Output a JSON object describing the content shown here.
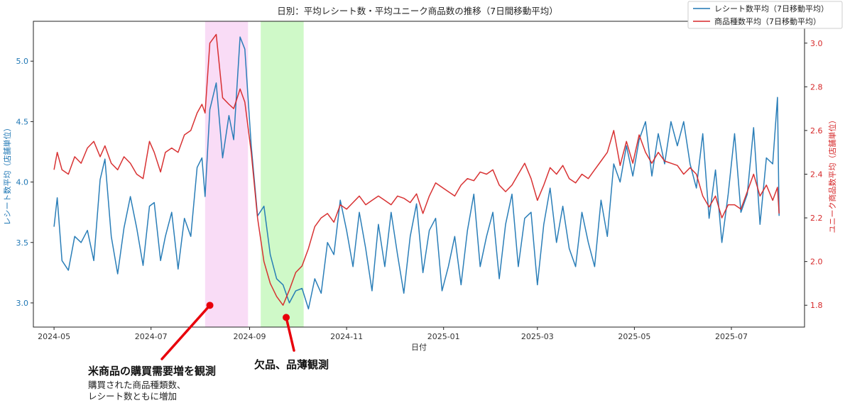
{
  "chart_data": {
    "type": "line",
    "title": "日別：平均レシート数・平均ユニーク商品数の推移（7日間移動平均）",
    "xlabel": "日付",
    "ylabel_left": "レシート数平均（店舗単位）",
    "ylabel_right": "ユニーク商品数平均（店舗単位）",
    "x_start": "2024-05-01",
    "x_end": "2025-07-31",
    "xlim": [
      "2024-04-18",
      "2025-08-16"
    ],
    "ylim_left": [
      2.8,
      5.33
    ],
    "ylim_right": [
      1.7,
      3.1
    ],
    "x_ticks": [
      "2024-05",
      "2024-07",
      "2024-09",
      "2024-11",
      "2025-01",
      "2025-03",
      "2025-05",
      "2025-07"
    ],
    "y_ticks_left": [
      "3.0",
      "3.5",
      "4.0",
      "4.5",
      "5.0"
    ],
    "y_ticks_right": [
      "1.8",
      "2.0",
      "2.2",
      "2.4",
      "2.6",
      "2.8",
      "3.0"
    ],
    "legend": [
      "レシート数平均（7日移動平均）",
      "商品種数平均（7日移動平均）"
    ],
    "legend_position": "top-right",
    "highlight_regions": [
      {
        "start": "2024-08-04",
        "end": "2024-08-31",
        "color": "#f9dcf6"
      },
      {
        "start": "2024-09-08",
        "end": "2024-10-05",
        "color": "#cff9c8"
      }
    ],
    "series": [
      {
        "name": "レシート数平均（7日移動平均）",
        "axis": "left",
        "color": "#1f77b4",
        "key_points": [
          [
            "2024-05-01",
            3.63
          ],
          [
            "2024-05-03",
            3.87
          ],
          [
            "2024-05-06",
            3.35
          ],
          [
            "2024-05-10",
            3.27
          ],
          [
            "2024-05-14",
            3.55
          ],
          [
            "2024-05-18",
            3.5
          ],
          [
            "2024-05-22",
            3.6
          ],
          [
            "2024-05-26",
            3.35
          ],
          [
            "2024-05-30",
            4.02
          ],
          [
            "2024-06-02",
            4.19
          ],
          [
            "2024-06-06",
            3.55
          ],
          [
            "2024-06-10",
            3.24
          ],
          [
            "2024-06-14",
            3.62
          ],
          [
            "2024-06-18",
            3.88
          ],
          [
            "2024-06-22",
            3.62
          ],
          [
            "2024-06-26",
            3.31
          ],
          [
            "2024-06-30",
            3.8
          ],
          [
            "2024-07-03",
            3.83
          ],
          [
            "2024-07-07",
            3.35
          ],
          [
            "2024-07-10",
            3.55
          ],
          [
            "2024-07-14",
            3.75
          ],
          [
            "2024-07-18",
            3.28
          ],
          [
            "2024-07-22",
            3.7
          ],
          [
            "2024-07-26",
            3.55
          ],
          [
            "2024-07-30",
            4.12
          ],
          [
            "2024-08-02",
            4.2
          ],
          [
            "2024-08-04",
            3.88
          ],
          [
            "2024-08-07",
            4.6
          ],
          [
            "2024-08-11",
            4.82
          ],
          [
            "2024-08-15",
            4.2
          ],
          [
            "2024-08-19",
            4.55
          ],
          [
            "2024-08-22",
            4.35
          ],
          [
            "2024-08-26",
            5.2
          ],
          [
            "2024-08-29",
            5.1
          ],
          [
            "2024-09-02",
            4.3
          ],
          [
            "2024-09-06",
            3.72
          ],
          [
            "2024-09-10",
            3.8
          ],
          [
            "2024-09-14",
            3.4
          ],
          [
            "2024-09-18",
            3.2
          ],
          [
            "2024-09-22",
            3.15
          ],
          [
            "2024-09-26",
            3.0
          ],
          [
            "2024-09-30",
            3.1
          ],
          [
            "2024-10-04",
            3.12
          ],
          [
            "2024-10-08",
            2.95
          ],
          [
            "2024-10-12",
            3.2
          ],
          [
            "2024-10-16",
            3.08
          ],
          [
            "2024-10-20",
            3.5
          ],
          [
            "2024-10-24",
            3.4
          ],
          [
            "2024-10-28",
            3.85
          ],
          [
            "2024-11-01",
            3.6
          ],
          [
            "2024-11-05",
            3.3
          ],
          [
            "2024-11-09",
            3.75
          ],
          [
            "2024-11-13",
            3.45
          ],
          [
            "2024-11-17",
            3.1
          ],
          [
            "2024-11-21",
            3.65
          ],
          [
            "2024-11-25",
            3.3
          ],
          [
            "2024-11-29",
            3.75
          ],
          [
            "2024-12-03",
            3.4
          ],
          [
            "2024-12-07",
            3.08
          ],
          [
            "2024-12-11",
            3.55
          ],
          [
            "2024-12-15",
            3.82
          ],
          [
            "2024-12-19",
            3.25
          ],
          [
            "2024-12-23",
            3.6
          ],
          [
            "2024-12-27",
            3.7
          ],
          [
            "2024-12-31",
            3.1
          ],
          [
            "2025-01-04",
            3.3
          ],
          [
            "2025-01-08",
            3.55
          ],
          [
            "2025-01-12",
            3.15
          ],
          [
            "2025-01-16",
            3.6
          ],
          [
            "2025-01-20",
            3.9
          ],
          [
            "2025-01-24",
            3.3
          ],
          [
            "2025-01-28",
            3.55
          ],
          [
            "2025-02-01",
            3.75
          ],
          [
            "2025-02-05",
            3.2
          ],
          [
            "2025-02-09",
            3.65
          ],
          [
            "2025-02-13",
            3.9
          ],
          [
            "2025-02-17",
            3.3
          ],
          [
            "2025-02-21",
            3.7
          ],
          [
            "2025-02-25",
            3.75
          ],
          [
            "2025-03-01",
            3.15
          ],
          [
            "2025-03-05",
            3.65
          ],
          [
            "2025-03-09",
            3.95
          ],
          [
            "2025-03-13",
            3.5
          ],
          [
            "2025-03-17",
            3.8
          ],
          [
            "2025-03-21",
            3.45
          ],
          [
            "2025-03-25",
            3.3
          ],
          [
            "2025-03-29",
            3.75
          ],
          [
            "2025-04-02",
            3.5
          ],
          [
            "2025-04-06",
            3.3
          ],
          [
            "2025-04-10",
            3.85
          ],
          [
            "2025-04-14",
            3.55
          ],
          [
            "2025-04-18",
            4.15
          ],
          [
            "2025-04-22",
            4.0
          ],
          [
            "2025-04-26",
            4.3
          ],
          [
            "2025-04-30",
            4.05
          ],
          [
            "2025-05-04",
            4.35
          ],
          [
            "2025-05-08",
            4.5
          ],
          [
            "2025-05-12",
            4.05
          ],
          [
            "2025-05-16",
            4.4
          ],
          [
            "2025-05-20",
            4.15
          ],
          [
            "2025-05-24",
            4.5
          ],
          [
            "2025-05-28",
            4.3
          ],
          [
            "2025-06-01",
            4.5
          ],
          [
            "2025-06-05",
            4.15
          ],
          [
            "2025-06-09",
            3.95
          ],
          [
            "2025-06-13",
            4.4
          ],
          [
            "2025-06-17",
            3.7
          ],
          [
            "2025-06-21",
            4.1
          ],
          [
            "2025-06-25",
            3.5
          ],
          [
            "2025-06-29",
            3.9
          ],
          [
            "2025-07-03",
            4.4
          ],
          [
            "2025-07-07",
            3.75
          ],
          [
            "2025-07-11",
            3.9
          ],
          [
            "2025-07-15",
            4.45
          ],
          [
            "2025-07-19",
            3.65
          ],
          [
            "2025-07-23",
            4.2
          ],
          [
            "2025-07-27",
            4.15
          ],
          [
            "2025-07-30",
            4.7
          ],
          [
            "2025-07-31",
            3.72
          ]
        ]
      },
      {
        "name": "商品種数平均（7日移動平均）",
        "axis": "right",
        "color": "#d62728",
        "key_points": [
          [
            "2024-05-01",
            2.42
          ],
          [
            "2024-05-03",
            2.5
          ],
          [
            "2024-05-06",
            2.42
          ],
          [
            "2024-05-10",
            2.4
          ],
          [
            "2024-05-14",
            2.48
          ],
          [
            "2024-05-18",
            2.45
          ],
          [
            "2024-05-22",
            2.52
          ],
          [
            "2024-05-26",
            2.55
          ],
          [
            "2024-05-30",
            2.48
          ],
          [
            "2024-06-02",
            2.53
          ],
          [
            "2024-06-06",
            2.45
          ],
          [
            "2024-06-10",
            2.42
          ],
          [
            "2024-06-14",
            2.48
          ],
          [
            "2024-06-18",
            2.45
          ],
          [
            "2024-06-22",
            2.4
          ],
          [
            "2024-06-26",
            2.38
          ],
          [
            "2024-06-30",
            2.55
          ],
          [
            "2024-07-03",
            2.5
          ],
          [
            "2024-07-07",
            2.41
          ],
          [
            "2024-07-10",
            2.5
          ],
          [
            "2024-07-14",
            2.52
          ],
          [
            "2024-07-18",
            2.5
          ],
          [
            "2024-07-22",
            2.58
          ],
          [
            "2024-07-26",
            2.6
          ],
          [
            "2024-07-30",
            2.68
          ],
          [
            "2024-08-02",
            2.72
          ],
          [
            "2024-08-04",
            2.68
          ],
          [
            "2024-08-07",
            3.0
          ],
          [
            "2024-08-11",
            3.04
          ],
          [
            "2024-08-15",
            2.75
          ],
          [
            "2024-08-19",
            2.72
          ],
          [
            "2024-08-22",
            2.7
          ],
          [
            "2024-08-26",
            2.79
          ],
          [
            "2024-08-29",
            2.73
          ],
          [
            "2024-09-02",
            2.5
          ],
          [
            "2024-09-06",
            2.2
          ],
          [
            "2024-09-10",
            2.0
          ],
          [
            "2024-09-14",
            1.9
          ],
          [
            "2024-09-18",
            1.84
          ],
          [
            "2024-09-22",
            1.8
          ],
          [
            "2024-09-26",
            1.87
          ],
          [
            "2024-09-30",
            1.95
          ],
          [
            "2024-10-04",
            1.98
          ],
          [
            "2024-10-08",
            2.06
          ],
          [
            "2024-10-12",
            2.16
          ],
          [
            "2024-10-16",
            2.2
          ],
          [
            "2024-10-20",
            2.22
          ],
          [
            "2024-10-24",
            2.18
          ],
          [
            "2024-10-28",
            2.26
          ],
          [
            "2024-11-01",
            2.24
          ],
          [
            "2024-11-05",
            2.27
          ],
          [
            "2024-11-09",
            2.3
          ],
          [
            "2024-11-13",
            2.26
          ],
          [
            "2024-11-17",
            2.28
          ],
          [
            "2024-11-21",
            2.3
          ],
          [
            "2024-11-25",
            2.28
          ],
          [
            "2024-11-29",
            2.26
          ],
          [
            "2024-12-03",
            2.3
          ],
          [
            "2024-12-07",
            2.29
          ],
          [
            "2024-12-11",
            2.27
          ],
          [
            "2024-12-15",
            2.31
          ],
          [
            "2024-12-19",
            2.22
          ],
          [
            "2024-12-23",
            2.3
          ],
          [
            "2024-12-27",
            2.36
          ],
          [
            "2024-12-31",
            2.34
          ],
          [
            "2025-01-04",
            2.32
          ],
          [
            "2025-01-08",
            2.3
          ],
          [
            "2025-01-12",
            2.35
          ],
          [
            "2025-01-16",
            2.38
          ],
          [
            "2025-01-20",
            2.37
          ],
          [
            "2025-01-24",
            2.41
          ],
          [
            "2025-01-28",
            2.4
          ],
          [
            "2025-02-01",
            2.42
          ],
          [
            "2025-02-05",
            2.35
          ],
          [
            "2025-02-09",
            2.32
          ],
          [
            "2025-02-13",
            2.35
          ],
          [
            "2025-02-17",
            2.4
          ],
          [
            "2025-02-21",
            2.45
          ],
          [
            "2025-02-25",
            2.38
          ],
          [
            "2025-03-01",
            2.28
          ],
          [
            "2025-03-05",
            2.35
          ],
          [
            "2025-03-09",
            2.43
          ],
          [
            "2025-03-13",
            2.4
          ],
          [
            "2025-03-17",
            2.44
          ],
          [
            "2025-03-21",
            2.38
          ],
          [
            "2025-03-25",
            2.36
          ],
          [
            "2025-03-29",
            2.4
          ],
          [
            "2025-04-02",
            2.38
          ],
          [
            "2025-04-06",
            2.42
          ],
          [
            "2025-04-10",
            2.46
          ],
          [
            "2025-04-14",
            2.5
          ],
          [
            "2025-04-18",
            2.6
          ],
          [
            "2025-04-22",
            2.44
          ],
          [
            "2025-04-26",
            2.55
          ],
          [
            "2025-04-30",
            2.45
          ],
          [
            "2025-05-04",
            2.58
          ],
          [
            "2025-05-08",
            2.5
          ],
          [
            "2025-05-12",
            2.45
          ],
          [
            "2025-05-16",
            2.5
          ],
          [
            "2025-05-20",
            2.46
          ],
          [
            "2025-05-24",
            2.45
          ],
          [
            "2025-05-28",
            2.44
          ],
          [
            "2025-06-01",
            2.4
          ],
          [
            "2025-06-05",
            2.43
          ],
          [
            "2025-06-09",
            2.4
          ],
          [
            "2025-06-13",
            2.3
          ],
          [
            "2025-06-17",
            2.25
          ],
          [
            "2025-06-21",
            2.3
          ],
          [
            "2025-06-25",
            2.2
          ],
          [
            "2025-06-29",
            2.26
          ],
          [
            "2025-07-03",
            2.26
          ],
          [
            "2025-07-07",
            2.24
          ],
          [
            "2025-07-11",
            2.32
          ],
          [
            "2025-07-15",
            2.4
          ],
          [
            "2025-07-19",
            2.3
          ],
          [
            "2025-07-23",
            2.35
          ],
          [
            "2025-07-27",
            2.28
          ],
          [
            "2025-07-30",
            2.34
          ],
          [
            "2025-07-31",
            2.22
          ]
        ]
      }
    ]
  },
  "annotations": [
    {
      "title": "米商品の購買需要増を観測",
      "body_line1": "購買された商品種類数、",
      "body_line2": "レシート数ともに増加",
      "target_date": "2024-08-07",
      "target_value_left": 2.98
    },
    {
      "title": "欠品、品薄観測",
      "target_date": "2024-09-24",
      "target_value_left": 2.88
    }
  ]
}
